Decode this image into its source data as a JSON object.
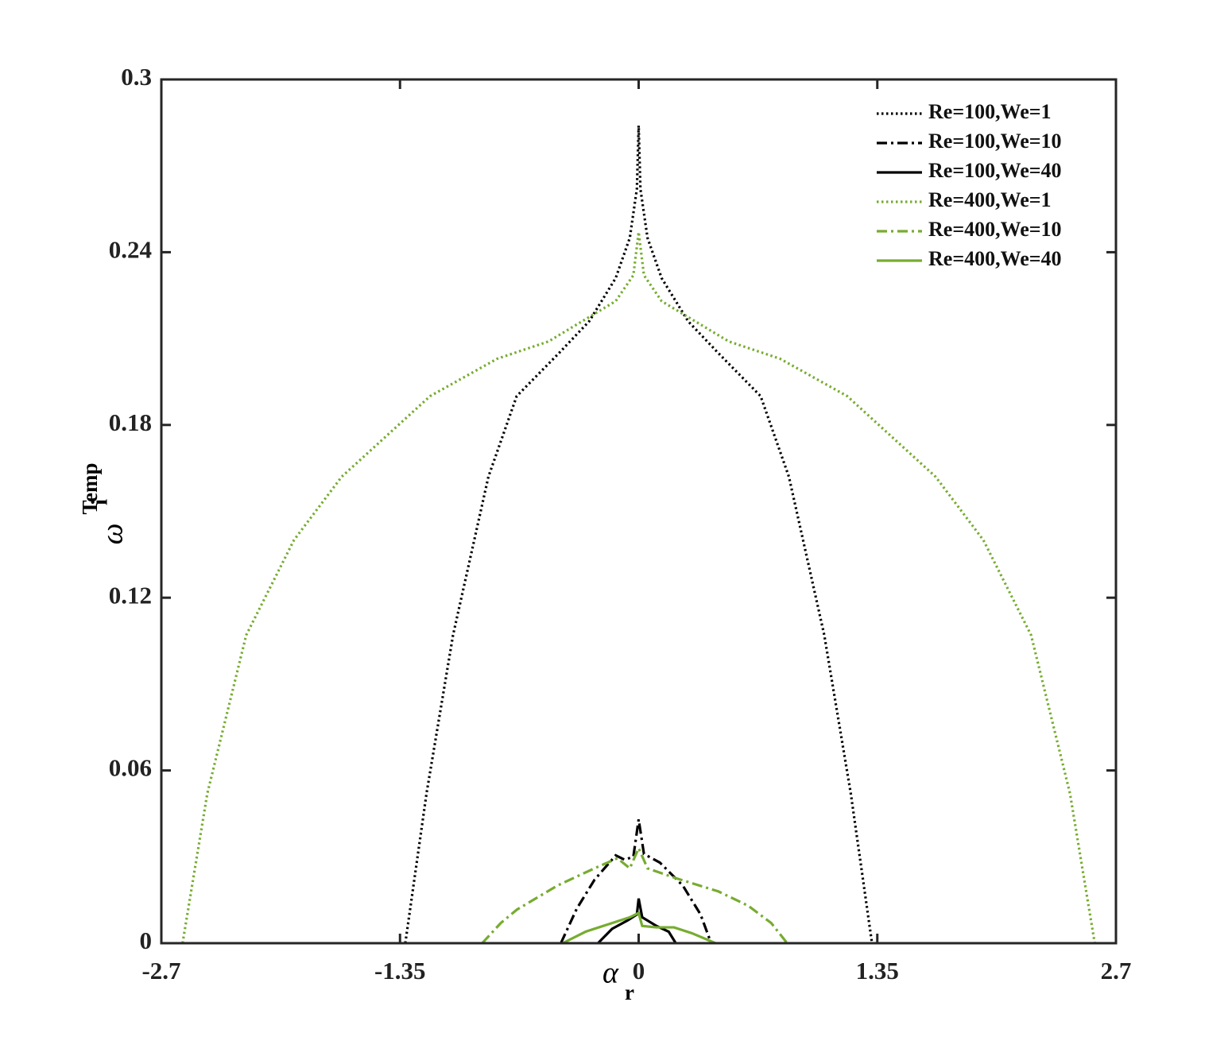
{
  "chart_data": {
    "type": "line",
    "xlabel": {
      "symbol": "α",
      "subscript": "r"
    },
    "ylabel": {
      "symbol": "ω",
      "subscript": "i",
      "superscript": "Temp"
    },
    "xlim": [
      -2.7,
      2.7
    ],
    "ylim": [
      0,
      0.3
    ],
    "xticks": [
      -2.7,
      -1.35,
      0,
      1.35,
      2.7
    ],
    "yticks": [
      0,
      0.06,
      0.12,
      0.18,
      0.24,
      0.3
    ],
    "legend": "upper right",
    "series": [
      {
        "name": "Re=100,We=1",
        "color": "#000000",
        "style": "dotted",
        "x": [
          -1.32,
          -1.2,
          -1.05,
          -0.85,
          -0.69,
          -0.45,
          -0.28,
          -0.13,
          -0.05,
          -0.01,
          0,
          0.01,
          0.05,
          0.13,
          0.28,
          0.45,
          0.69,
          0.85,
          1.05,
          1.2,
          1.32
        ],
        "values": [
          0,
          0.052,
          0.107,
          0.162,
          0.19,
          0.205,
          0.216,
          0.231,
          0.245,
          0.262,
          0.284,
          0.262,
          0.245,
          0.231,
          0.216,
          0.205,
          0.19,
          0.162,
          0.107,
          0.052,
          0
        ]
      },
      {
        "name": "Re=100,We=10",
        "color": "#000000",
        "style": "dashdot",
        "x": [
          -0.44,
          -0.35,
          -0.25,
          -0.13,
          -0.08,
          -0.03,
          0,
          0.03,
          0.12,
          0.25,
          0.35,
          0.41
        ],
        "values": [
          0,
          0.012,
          0.022,
          0.0305,
          0.029,
          0.03,
          0.043,
          0.031,
          0.028,
          0.02,
          0.01,
          0
        ]
      },
      {
        "name": "Re=100,We=40",
        "color": "#000000",
        "style": "solid",
        "x": [
          -0.23,
          -0.15,
          -0.06,
          -0.01,
          0,
          0.02,
          0.1,
          0.17,
          0.21
        ],
        "values": [
          0,
          0.005,
          0.008,
          0.01,
          0.0155,
          0.009,
          0.006,
          0.004,
          0
        ]
      },
      {
        "name": "Re=400,We=1",
        "color": "#77ac30",
        "style": "dotted",
        "x": [
          -2.58,
          -2.44,
          -2.22,
          -1.95,
          -1.68,
          -1.18,
          -0.8,
          -0.51,
          -0.13,
          -0.03,
          0,
          0.03,
          0.13,
          0.51,
          0.8,
          1.18,
          1.68,
          1.95,
          2.22,
          2.44,
          2.58
        ],
        "values": [
          0,
          0.052,
          0.107,
          0.14,
          0.162,
          0.19,
          0.203,
          0.209,
          0.223,
          0.232,
          0.247,
          0.232,
          0.223,
          0.209,
          0.203,
          0.19,
          0.162,
          0.14,
          0.107,
          0.052,
          0
        ]
      },
      {
        "name": "Re=400,We=10",
        "color": "#77ac30",
        "style": "dashdot",
        "x": [
          -0.885,
          -0.78,
          -0.69,
          -0.46,
          -0.25,
          -0.12,
          -0.05,
          0,
          0.05,
          0.21,
          0.45,
          0.62,
          0.75,
          0.84
        ],
        "values": [
          0,
          0.007,
          0.0116,
          0.02,
          0.026,
          0.0295,
          0.026,
          0.033,
          0.026,
          0.0226,
          0.018,
          0.013,
          0.007,
          0
        ]
      },
      {
        "name": "Re=400,We=40",
        "color": "#77ac30",
        "style": "solid",
        "x": [
          -0.43,
          -0.3,
          -0.15,
          -0.05,
          0,
          0.02,
          0.1,
          0.2,
          0.3,
          0.435
        ],
        "values": [
          0,
          0.004,
          0.007,
          0.009,
          0.0105,
          0.006,
          0.0055,
          0.0055,
          0.0035,
          0
        ]
      }
    ]
  }
}
